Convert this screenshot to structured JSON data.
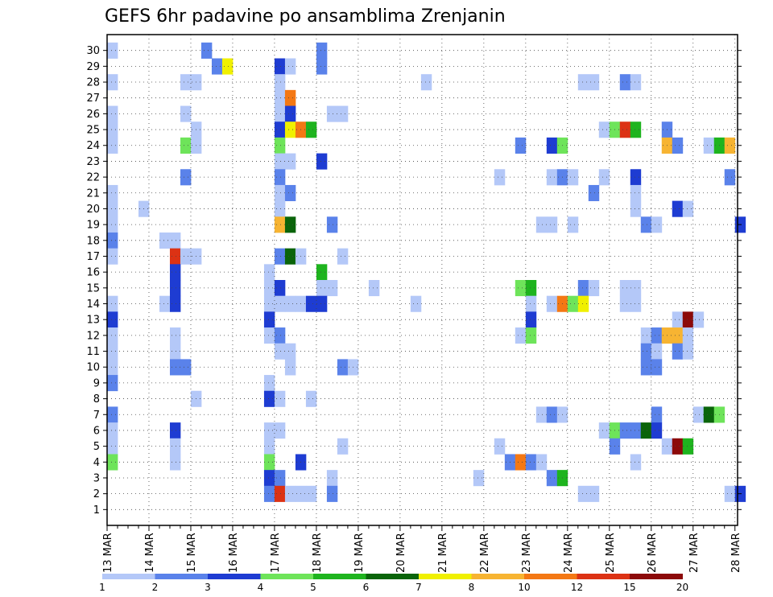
{
  "chart_data": {
    "type": "heatmap",
    "title": "GEFS 6hr padavine po ansamblima Zrenjanin",
    "x_ticks": [
      "13 MAR",
      "14 MAR",
      "15 MAR",
      "16 MAR",
      "17 MAR",
      "18 MAR",
      "19 MAR",
      "20 MAR",
      "21 MAR",
      "22 MAR",
      "23 MAR",
      "24 MAR",
      "25 MAR",
      "26 MAR",
      "27 MAR",
      "28 MAR"
    ],
    "y_ticks": [
      "1",
      "2",
      "3",
      "4",
      "5",
      "6",
      "7",
      "8",
      "9",
      "10",
      "11",
      "12",
      "13",
      "14",
      "15",
      "16",
      "17",
      "18",
      "19",
      "20",
      "21",
      "22",
      "23",
      "24",
      "25",
      "26",
      "27",
      "28",
      "29",
      "30"
    ],
    "x_steps": 60,
    "y_range": [
      1,
      30
    ],
    "grid": true,
    "colorbar": {
      "labels": [
        "1",
        "2",
        "3",
        "4",
        "5",
        "6",
        "7",
        "8",
        "10",
        "12",
        "15",
        "20"
      ],
      "colors": [
        "#b4c8f8",
        "#5a82ea",
        "#1e3cd2",
        "#6ee45a",
        "#1eb41e",
        "#0a640a",
        "#f0f000",
        "#f7b432",
        "#f47814",
        "#dc3214",
        "#8c0a0a"
      ]
    },
    "cells": [
      [
        0,
        30,
        1
      ],
      [
        9,
        30,
        2
      ],
      [
        20,
        30,
        2
      ],
      [
        0,
        28,
        1
      ],
      [
        16,
        29,
        3
      ],
      [
        17,
        29,
        1
      ],
      [
        20,
        29,
        2
      ],
      [
        10,
        29,
        2
      ],
      [
        11,
        29,
        7
      ],
      [
        30,
        28,
        1
      ],
      [
        7,
        28,
        1
      ],
      [
        8,
        28,
        1
      ],
      [
        16,
        28,
        1
      ],
      [
        45,
        28,
        1
      ],
      [
        46,
        28,
        1
      ],
      [
        49,
        28,
        2
      ],
      [
        50,
        28,
        1
      ],
      [
        16,
        27,
        1
      ],
      [
        17,
        27,
        9
      ],
      [
        0,
        26,
        1
      ],
      [
        7,
        26,
        1
      ],
      [
        16,
        26,
        1
      ],
      [
        17,
        26,
        3
      ],
      [
        21,
        26,
        1
      ],
      [
        22,
        26,
        1
      ],
      [
        0,
        25,
        1
      ],
      [
        8,
        25,
        1
      ],
      [
        16,
        25,
        3
      ],
      [
        17,
        25,
        7
      ],
      [
        18,
        25,
        9
      ],
      [
        19,
        25,
        5
      ],
      [
        47,
        25,
        1
      ],
      [
        48,
        25,
        4
      ],
      [
        49,
        25,
        10
      ],
      [
        50,
        25,
        5
      ],
      [
        53,
        25,
        2
      ],
      [
        0,
        24,
        1
      ],
      [
        7,
        24,
        4
      ],
      [
        8,
        24,
        1
      ],
      [
        16,
        24,
        4
      ],
      [
        39,
        24,
        2
      ],
      [
        42,
        24,
        3
      ],
      [
        43,
        24,
        4
      ],
      [
        53,
        24,
        8
      ],
      [
        54,
        24,
        2
      ],
      [
        57,
        24,
        1
      ],
      [
        58,
        24,
        5
      ],
      [
        59,
        24,
        8
      ],
      [
        16,
        23,
        1
      ],
      [
        17,
        23,
        1
      ],
      [
        20,
        23,
        3
      ],
      [
        7,
        22,
        2
      ],
      [
        16,
        22,
        2
      ],
      [
        37,
        22,
        1
      ],
      [
        42,
        22,
        1
      ],
      [
        43,
        22,
        2
      ],
      [
        44,
        22,
        1
      ],
      [
        47,
        22,
        1
      ],
      [
        50,
        22,
        3
      ],
      [
        59,
        22,
        2
      ],
      [
        0,
        21,
        1
      ],
      [
        16,
        21,
        1
      ],
      [
        17,
        21,
        2
      ],
      [
        46,
        21,
        2
      ],
      [
        50,
        21,
        1
      ],
      [
        0,
        20,
        1
      ],
      [
        3,
        20,
        1
      ],
      [
        16,
        20,
        1
      ],
      [
        50,
        20,
        1
      ],
      [
        54,
        20,
        3
      ],
      [
        55,
        20,
        1
      ],
      [
        0,
        19,
        1
      ],
      [
        16,
        19,
        8
      ],
      [
        17,
        19,
        6
      ],
      [
        21,
        19,
        2
      ],
      [
        41,
        19,
        1
      ],
      [
        42,
        19,
        1
      ],
      [
        44,
        19,
        1
      ],
      [
        51,
        19,
        2
      ],
      [
        52,
        19,
        1
      ],
      [
        60,
        19,
        3
      ],
      [
        0,
        18,
        2
      ],
      [
        5,
        18,
        1
      ],
      [
        6,
        18,
        1
      ],
      [
        0,
        17,
        1
      ],
      [
        6,
        17,
        10
      ],
      [
        7,
        17,
        1
      ],
      [
        8,
        17,
        1
      ],
      [
        16,
        17,
        2
      ],
      [
        17,
        17,
        6
      ],
      [
        18,
        17,
        1
      ],
      [
        22,
        17,
        1
      ],
      [
        6,
        16,
        3
      ],
      [
        15,
        16,
        1
      ],
      [
        20,
        16,
        5
      ],
      [
        6,
        15,
        3
      ],
      [
        15,
        15,
        1
      ],
      [
        16,
        15,
        3
      ],
      [
        20,
        15,
        1
      ],
      [
        21,
        15,
        1
      ],
      [
        25,
        15,
        1
      ],
      [
        39,
        15,
        4
      ],
      [
        40,
        15,
        5
      ],
      [
        45,
        15,
        2
      ],
      [
        46,
        15,
        1
      ],
      [
        49,
        15,
        1
      ],
      [
        50,
        15,
        1
      ],
      [
        0,
        14,
        1
      ],
      [
        5,
        14,
        1
      ],
      [
        6,
        14,
        3
      ],
      [
        15,
        14,
        1
      ],
      [
        16,
        14,
        1
      ],
      [
        17,
        14,
        1
      ],
      [
        18,
        14,
        1
      ],
      [
        19,
        14,
        3
      ],
      [
        20,
        14,
        3
      ],
      [
        29,
        14,
        1
      ],
      [
        40,
        14,
        1
      ],
      [
        42,
        14,
        1
      ],
      [
        43,
        14,
        9
      ],
      [
        44,
        14,
        4
      ],
      [
        45,
        14,
        7
      ],
      [
        49,
        14,
        1
      ],
      [
        50,
        14,
        1
      ],
      [
        0,
        13,
        3
      ],
      [
        15,
        13,
        3
      ],
      [
        40,
        13,
        3
      ],
      [
        54,
        13,
        1
      ],
      [
        55,
        13,
        11
      ],
      [
        56,
        13,
        1
      ],
      [
        0,
        12,
        1
      ],
      [
        6,
        12,
        1
      ],
      [
        15,
        12,
        1
      ],
      [
        16,
        12,
        2
      ],
      [
        39,
        12,
        1
      ],
      [
        40,
        12,
        4
      ],
      [
        51,
        12,
        1
      ],
      [
        52,
        12,
        2
      ],
      [
        53,
        12,
        8
      ],
      [
        54,
        12,
        8
      ],
      [
        55,
        12,
        1
      ],
      [
        0,
        11,
        1
      ],
      [
        6,
        11,
        1
      ],
      [
        16,
        11,
        1
      ],
      [
        17,
        11,
        1
      ],
      [
        51,
        11,
        2
      ],
      [
        52,
        11,
        1
      ],
      [
        54,
        11,
        2
      ],
      [
        55,
        11,
        1
      ],
      [
        0,
        10,
        1
      ],
      [
        6,
        10,
        2
      ],
      [
        7,
        10,
        2
      ],
      [
        17,
        10,
        1
      ],
      [
        22,
        10,
        2
      ],
      [
        23,
        10,
        1
      ],
      [
        51,
        10,
        2
      ],
      [
        52,
        10,
        2
      ],
      [
        0,
        9,
        2
      ],
      [
        15,
        9,
        1
      ],
      [
        8,
        8,
        1
      ],
      [
        15,
        8,
        3
      ],
      [
        16,
        8,
        1
      ],
      [
        19,
        8,
        1
      ],
      [
        0,
        7,
        2
      ],
      [
        41,
        7,
        1
      ],
      [
        42,
        7,
        2
      ],
      [
        43,
        7,
        1
      ],
      [
        52,
        7,
        2
      ],
      [
        56,
        7,
        1
      ],
      [
        57,
        7,
        6
      ],
      [
        58,
        7,
        4
      ],
      [
        0,
        6,
        1
      ],
      [
        6,
        6,
        3
      ],
      [
        15,
        6,
        1
      ],
      [
        16,
        6,
        1
      ],
      [
        47,
        6,
        1
      ],
      [
        48,
        6,
        4
      ],
      [
        49,
        6,
        2
      ],
      [
        50,
        6,
        2
      ],
      [
        51,
        6,
        6
      ],
      [
        52,
        6,
        3
      ],
      [
        0,
        5,
        1
      ],
      [
        6,
        5,
        1
      ],
      [
        15,
        5,
        1
      ],
      [
        22,
        5,
        1
      ],
      [
        37,
        5,
        1
      ],
      [
        48,
        5,
        2
      ],
      [
        53,
        5,
        1
      ],
      [
        54,
        5,
        11
      ],
      [
        55,
        5,
        5
      ],
      [
        0,
        4,
        4
      ],
      [
        6,
        4,
        1
      ],
      [
        15,
        4,
        4
      ],
      [
        18,
        4,
        3
      ],
      [
        38,
        4,
        2
      ],
      [
        39,
        4,
        9
      ],
      [
        40,
        4,
        2
      ],
      [
        41,
        4,
        1
      ],
      [
        50,
        4,
        1
      ],
      [
        15,
        3,
        3
      ],
      [
        16,
        3,
        2
      ],
      [
        21,
        3,
        1
      ],
      [
        35,
        3,
        1
      ],
      [
        42,
        3,
        2
      ],
      [
        43,
        3,
        5
      ],
      [
        15,
        2,
        2
      ],
      [
        16,
        2,
        10
      ],
      [
        17,
        2,
        1
      ],
      [
        18,
        2,
        1
      ],
      [
        19,
        2,
        1
      ],
      [
        21,
        2,
        2
      ],
      [
        45,
        2,
        1
      ],
      [
        46,
        2,
        1
      ],
      [
        59,
        2,
        1
      ],
      [
        60,
        2,
        3
      ]
    ]
  }
}
